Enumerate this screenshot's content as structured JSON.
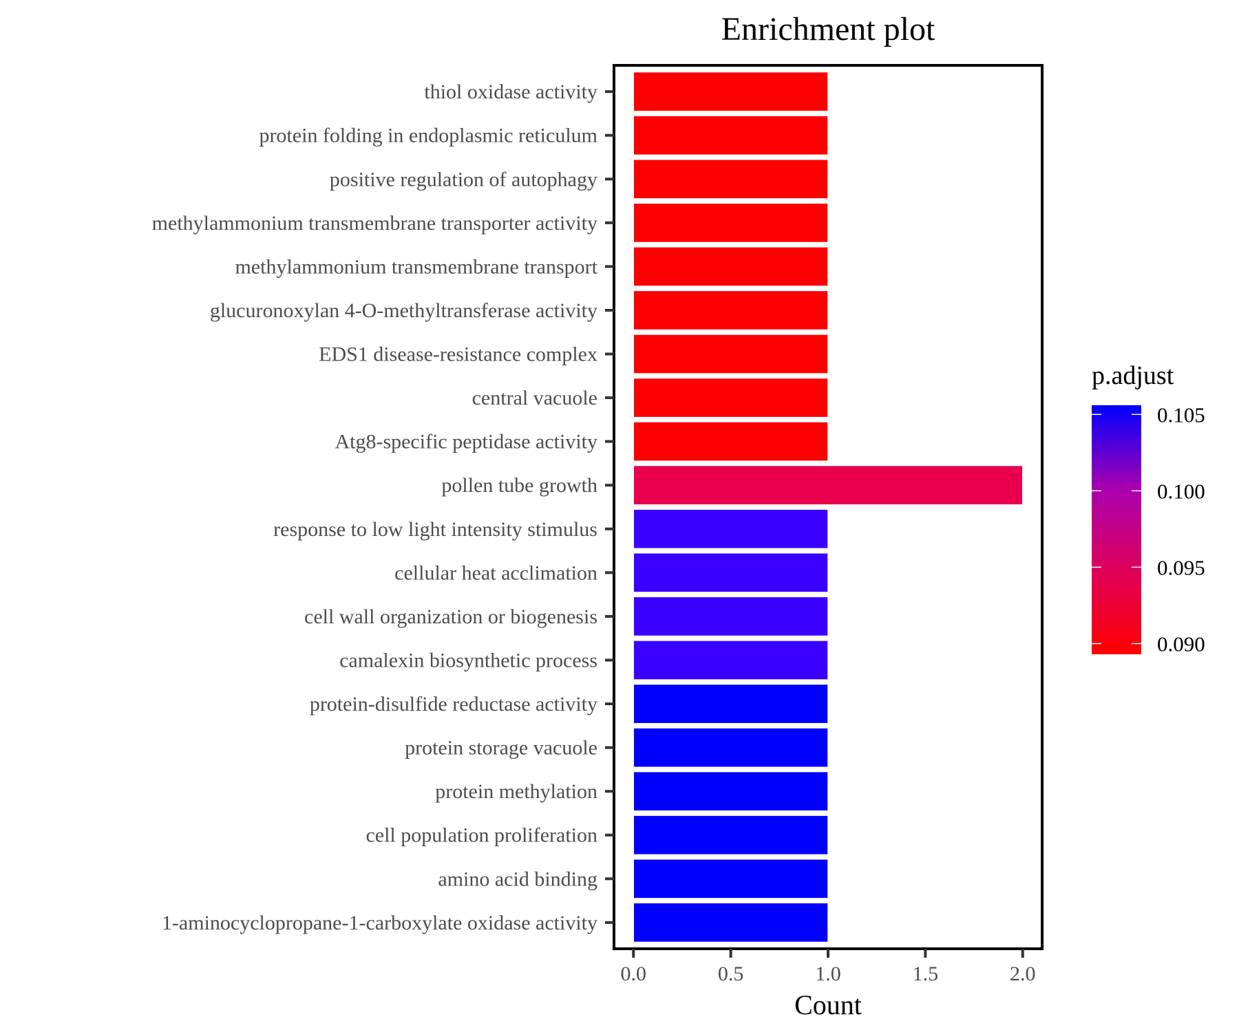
{
  "chart_data": {
    "type": "bar",
    "orientation": "horizontal",
    "title": "Enrichment plot",
    "xlabel": "Count",
    "ylabel": "",
    "xlim": [
      -0.1,
      2.1
    ],
    "xticks": [
      "0.0",
      "0.5",
      "1.0",
      "1.5",
      "2.0"
    ],
    "xtick_values": [
      0,
      0.5,
      1,
      1.5,
      2
    ],
    "grid": false,
    "categories": [
      "thiol oxidase activity",
      "protein folding in endoplasmic reticulum",
      "positive regulation of autophagy",
      "methylammonium transmembrane transporter activity",
      "methylammonium transmembrane transport",
      "glucuronoxylan 4-O-methyltransferase activity",
      "EDS1 disease-resistance complex",
      "central vacuole",
      "Atg8-specific peptidase activity",
      "pollen tube growth",
      "response to low light intensity stimulus",
      "cellular heat acclimation",
      "cell wall organization or biogenesis",
      "camalexin biosynthetic process",
      "protein-disulfide reductase activity",
      "protein storage vacuole",
      "protein methylation",
      "cell population proliferation",
      "amino acid binding",
      "1-aminocyclopropane-1-carboxylate oxidase activity"
    ],
    "values": [
      1,
      1,
      1,
      1,
      1,
      1,
      1,
      1,
      1,
      2,
      1,
      1,
      1,
      1,
      1,
      1,
      1,
      1,
      1,
      1
    ],
    "p_adjust": [
      0.0894,
      0.0894,
      0.0894,
      0.0894,
      0.0894,
      0.0894,
      0.0894,
      0.0894,
      0.0894,
      0.0936,
      0.1045,
      0.1045,
      0.1045,
      0.1045,
      0.1056,
      0.1056,
      0.1056,
      0.1056,
      0.1056,
      0.1056
    ],
    "bar_colors": [
      "#ff0000",
      "#ff0000",
      "#ff0000",
      "#ff0000",
      "#ff0000",
      "#ff0000",
      "#ff0000",
      "#ff0000",
      "#ff0000",
      "#e8004e",
      "#3a00ff",
      "#3a00ff",
      "#3a00ff",
      "#3a00ff",
      "#0000ff",
      "#0000ff",
      "#0000ff",
      "#0000ff",
      "#0000ff",
      "#0000ff"
    ],
    "legend": {
      "title": "p.adjust",
      "placement": "right",
      "ticks": [
        "0.105",
        "0.100",
        "0.095",
        "0.090"
      ],
      "tick_values": [
        0.105,
        0.1,
        0.095,
        0.09
      ],
      "range": [
        0.0893,
        0.1056
      ],
      "gradient": [
        "#ff0000",
        "#e0005a",
        "#a800b0",
        "#0000ff"
      ],
      "low_color": "#ff0000",
      "high_color": "#0000ff"
    }
  }
}
